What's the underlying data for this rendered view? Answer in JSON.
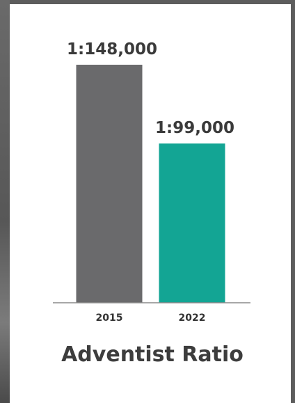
{
  "chart_data": {
    "type": "bar",
    "title": "Adventist Ratio",
    "categories": [
      "2015",
      "2022"
    ],
    "values": [
      148000,
      99000
    ],
    "value_labels": [
      "1:148,000",
      "1:99,000"
    ],
    "colors": [
      "#6a6a6c",
      "#13a594"
    ],
    "ylim": [
      0,
      148000
    ],
    "grid": false,
    "legend": "none",
    "xlabel": "",
    "ylabel": ""
  }
}
